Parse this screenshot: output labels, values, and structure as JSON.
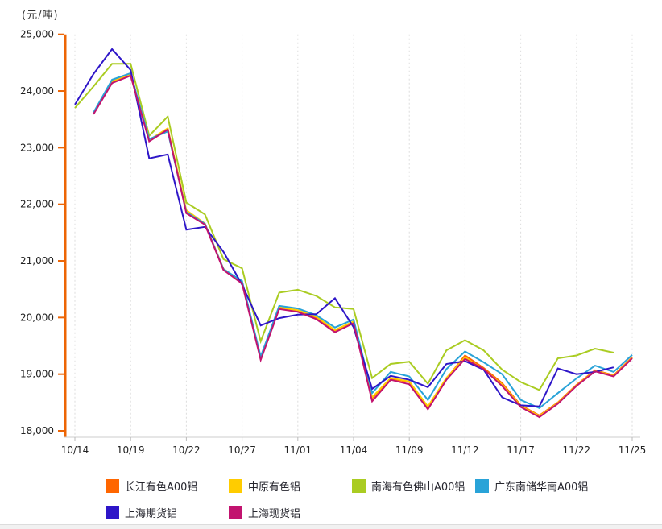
{
  "page": {
    "background_color": "#ffffff",
    "bottom_strip_color": "#f1f1f1"
  },
  "chart": {
    "unit_label": "(元/吨)",
    "y_axis_color": "#ED6505",
    "x_axis_color": "#cccccc",
    "gridline_color": "#dddddd",
    "tick_label_color": "#222222",
    "y_tick_labels": [
      "25,000",
      "24,000",
      "23,000",
      "22,000",
      "21,000",
      "20,000",
      "19,000",
      "18,000"
    ]
  },
  "chart_data": {
    "type": "line",
    "title": "",
    "xlabel": "",
    "ylabel": "(元/吨)",
    "ylim": [
      18000,
      25000
    ],
    "y_tick_step": 1000,
    "grid": "vertical-dashed",
    "legend_position": "bottom",
    "n_points": 31,
    "x_tick_labels": [
      "10/14",
      "10/19",
      "10/22",
      "10/27",
      "11/01",
      "11/04",
      "11/09",
      "11/12",
      "11/17",
      "11/22",
      "11/25"
    ],
    "x_tick_indices": [
      0,
      3,
      6,
      9,
      12,
      15,
      18,
      21,
      24,
      27,
      30
    ],
    "series": [
      {
        "name": "长江有色A00铝",
        "color": "#FF6600",
        "values": [
          null,
          23600,
          24160,
          24290,
          23120,
          23330,
          21880,
          21650,
          20850,
          20620,
          19280,
          20170,
          20120,
          20000,
          19770,
          19920,
          18570,
          18920,
          18860,
          18410,
          18920,
          19330,
          19110,
          18840,
          18450,
          18270,
          18500,
          18810,
          19070,
          18980,
          19300
        ]
      },
      {
        "name": "中原有色铝",
        "color": "#FFCC00",
        "values": [
          null,
          23610,
          24175,
          24300,
          23135,
          23340,
          21895,
          21660,
          20860,
          20630,
          19290,
          20180,
          20130,
          20010,
          19780,
          19930,
          18590,
          18935,
          18870,
          18430,
          18935,
          19295,
          19085,
          18815,
          18435,
          18260,
          18490,
          18800,
          19060,
          18970,
          19290
        ]
      },
      {
        "name": "南海有色佛山A00铝",
        "color": "#AACC22",
        "values": [
          23700,
          24080,
          24480,
          24480,
          23210,
          23550,
          22030,
          21820,
          21030,
          20870,
          19580,
          20440,
          20490,
          20380,
          20180,
          20150,
          18930,
          19180,
          19220,
          18830,
          19420,
          19600,
          19420,
          19080,
          18860,
          18720,
          19280,
          19330,
          19450,
          19380,
          null
        ]
      },
      {
        "name": "广东南储华南A00铝",
        "color": "#29A3D8",
        "values": [
          null,
          23620,
          24200,
          24315,
          23150,
          23285,
          21860,
          21655,
          20855,
          20645,
          19310,
          20205,
          20160,
          20040,
          19825,
          19965,
          18665,
          19040,
          18960,
          18545,
          19090,
          19400,
          19210,
          19000,
          18545,
          18400,
          18665,
          18925,
          19150,
          19040,
          19340
        ]
      },
      {
        "name": "上海期货铝",
        "color": "#2E16C8",
        "values": [
          23760,
          24300,
          24740,
          24370,
          22810,
          22880,
          21550,
          21600,
          21160,
          20580,
          19860,
          19990,
          20050,
          20060,
          20340,
          19830,
          18740,
          18970,
          18900,
          18770,
          19180,
          19230,
          19080,
          18590,
          18450,
          18430,
          19100,
          19000,
          19040,
          19120,
          null
        ]
      },
      {
        "name": "上海现货铝",
        "color": "#C2136F",
        "values": [
          null,
          23590,
          24140,
          24270,
          23110,
          23320,
          21840,
          21640,
          20840,
          20600,
          19250,
          20150,
          20100,
          19970,
          19740,
          19900,
          18520,
          18900,
          18820,
          18380,
          18900,
          19270,
          19090,
          18790,
          18420,
          18240,
          18480,
          18790,
          19050,
          18960,
          19280
        ]
      }
    ]
  }
}
